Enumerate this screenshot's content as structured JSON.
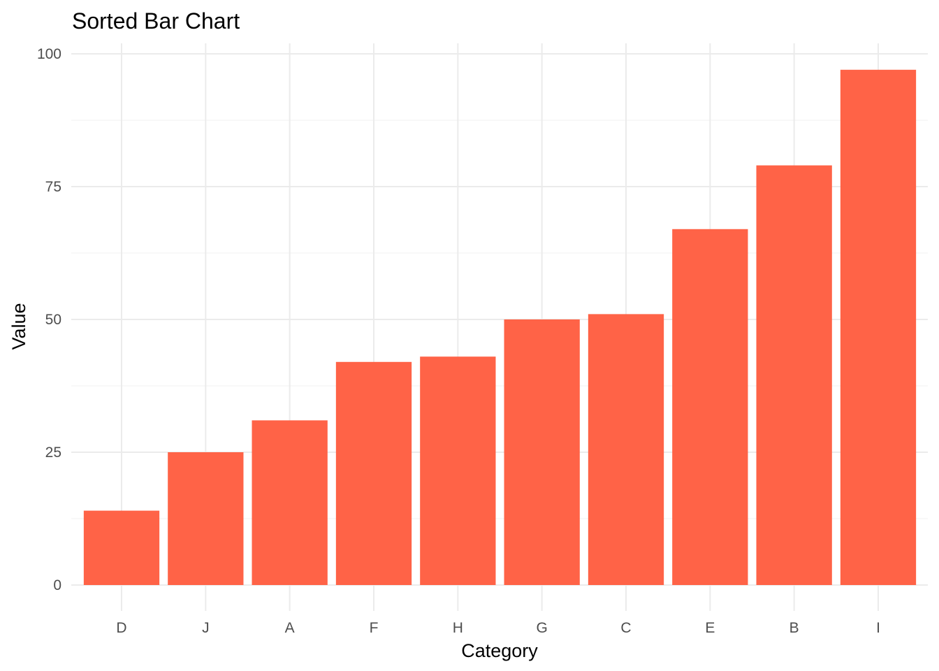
{
  "chart_data": {
    "type": "bar",
    "title": "Sorted Bar Chart",
    "xlabel": "Category",
    "ylabel": "Value",
    "categories": [
      "D",
      "J",
      "A",
      "F",
      "H",
      "G",
      "C",
      "E",
      "B",
      "I"
    ],
    "values": [
      14,
      25,
      31,
      42,
      43,
      50,
      51,
      67,
      79,
      97
    ],
    "ylim": [
      0,
      100
    ],
    "yticks": [
      0,
      25,
      50,
      75,
      100
    ],
    "grid": true,
    "legend": "none",
    "colors": {
      "bar": "#FF6347",
      "grid_major": "#EBEBEB",
      "grid_minor": "#F3F3F3",
      "tick_text": "#4D4D4D",
      "title_text": "#000000"
    }
  }
}
